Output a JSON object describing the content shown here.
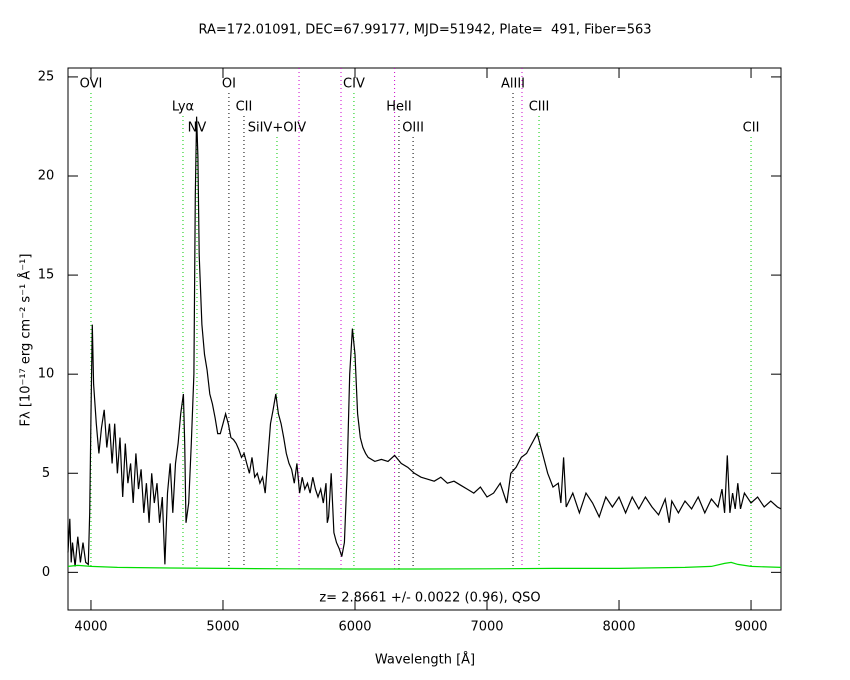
{
  "chart_data": {
    "type": "line",
    "title": "RA=172.01091, DEC=67.99177, MJD=51942, Plate=  491, Fiber=563",
    "x_label": "Wavelength [Å]",
    "y_label": "Fλ [10⁻¹⁷ erg cm⁻² s⁻¹ Å⁻¹]",
    "annotation": "z= 2.8661 +/- 0.0022 (0.96), QSO",
    "xlim": [
      3826,
      9227
    ],
    "ylim": [
      -1.9,
      25.45
    ],
    "xticks": [
      4000,
      5000,
      6000,
      7000,
      8000,
      9000
    ],
    "yticks": [
      0,
      5,
      10,
      15,
      20,
      25
    ],
    "lines": [
      {
        "label": "OVI",
        "x": 4000,
        "color": "#00cc00"
      },
      {
        "label": "Lyα",
        "x": 4697,
        "color": "#00cc00"
      },
      {
        "label": "NV",
        "x": 4803,
        "color": "#00cc00"
      },
      {
        "label": "OI",
        "x": 5045,
        "color": "#000000"
      },
      {
        "label": "CII",
        "x": 5159,
        "color": "#000000"
      },
      {
        "label": "SiIV+OIV",
        "x": 5409,
        "color": "#00cc00"
      },
      {
        "x": 5576,
        "color": "#cc00cc"
      },
      {
        "x": 5894,
        "color": "#cc00cc"
      },
      {
        "label": "CIV",
        "x": 5992,
        "color": "#00cc00"
      },
      {
        "x": 6300,
        "color": "#cc00cc"
      },
      {
        "label": "HeII",
        "x": 6333,
        "color": "#000000"
      },
      {
        "label": "OIII",
        "x": 6440,
        "color": "#000000"
      },
      {
        "label": "AlIII",
        "x": 7197,
        "color": "#000000"
      },
      {
        "x": 7265,
        "color": "#cc00cc"
      },
      {
        "label": "CIII",
        "x": 7394,
        "color": "#00cc00"
      },
      {
        "label": "CII",
        "x": 9000,
        "color": "#00cc00"
      }
    ],
    "series": [
      {
        "name": "flux",
        "color": "#000000",
        "x": [
          3826,
          3840,
          3850,
          3860,
          3880,
          3900,
          3920,
          3940,
          3960,
          3980,
          3990,
          4000,
          4010,
          4020,
          4040,
          4060,
          4080,
          4100,
          4120,
          4140,
          4160,
          4180,
          4200,
          4220,
          4240,
          4260,
          4280,
          4300,
          4320,
          4340,
          4360,
          4380,
          4400,
          4420,
          4440,
          4460,
          4480,
          4500,
          4520,
          4540,
          4560,
          4580,
          4600,
          4620,
          4640,
          4660,
          4680,
          4700,
          4710,
          4720,
          4740,
          4760,
          4780,
          4790,
          4800,
          4810,
          4820,
          4840,
          4860,
          4880,
          4900,
          4920,
          4940,
          4960,
          4980,
          5000,
          5020,
          5040,
          5060,
          5080,
          5100,
          5120,
          5140,
          5160,
          5180,
          5200,
          5220,
          5240,
          5260,
          5280,
          5300,
          5320,
          5340,
          5360,
          5380,
          5400,
          5420,
          5440,
          5460,
          5480,
          5500,
          5520,
          5540,
          5560,
          5580,
          5600,
          5620,
          5640,
          5660,
          5680,
          5700,
          5720,
          5740,
          5760,
          5780,
          5790,
          5800,
          5820,
          5840,
          5860,
          5880,
          5900,
          5920,
          5940,
          5960,
          5980,
          6000,
          6020,
          6040,
          6060,
          6080,
          6100,
          6150,
          6200,
          6250,
          6300,
          6350,
          6400,
          6450,
          6500,
          6550,
          6600,
          6650,
          6700,
          6750,
          6800,
          6850,
          6900,
          6950,
          7000,
          7050,
          7100,
          7150,
          7180,
          7220,
          7260,
          7300,
          7340,
          7380,
          7420,
          7460,
          7500,
          7540,
          7560,
          7580,
          7600,
          7650,
          7700,
          7750,
          7800,
          7850,
          7900,
          7950,
          8000,
          8050,
          8100,
          8150,
          8200,
          8250,
          8300,
          8350,
          8380,
          8400,
          8450,
          8500,
          8550,
          8600,
          8650,
          8700,
          8750,
          8780,
          8800,
          8820,
          8840,
          8860,
          8880,
          8900,
          8920,
          8950,
          9000,
          9050,
          9100,
          9150,
          9200,
          9227
        ],
        "values": [
          1.0,
          2.7,
          0.5,
          1.5,
          0.3,
          1.8,
          0.5,
          1.5,
          0.5,
          0.4,
          3.0,
          8.0,
          12.5,
          9.5,
          7.5,
          6.0,
          7.3,
          8.2,
          6.3,
          7.5,
          5.5,
          7.5,
          5.0,
          6.8,
          3.8,
          6.5,
          4.5,
          5.5,
          3.5,
          6.0,
          4.2,
          5.2,
          3.0,
          4.5,
          2.5,
          5.0,
          3.5,
          4.5,
          2.5,
          3.8,
          0.4,
          4.0,
          5.5,
          3.0,
          5.5,
          6.5,
          8.0,
          9.0,
          6.5,
          2.5,
          3.5,
          6.5,
          10.0,
          19.0,
          23.0,
          21.0,
          16.0,
          12.5,
          11.0,
          10.2,
          9.0,
          8.5,
          7.8,
          7.0,
          7.0,
          7.5,
          8.0,
          7.5,
          6.8,
          6.7,
          6.5,
          6.2,
          5.8,
          6.0,
          5.5,
          5.0,
          5.8,
          4.8,
          5.0,
          4.5,
          4.8,
          4.0,
          5.8,
          7.5,
          8.2,
          9.0,
          8.0,
          7.5,
          6.8,
          6.0,
          5.5,
          5.2,
          4.5,
          5.5,
          4.0,
          4.8,
          4.2,
          4.5,
          4.0,
          4.8,
          4.2,
          3.8,
          4.2,
          3.5,
          4.5,
          2.5,
          2.8,
          5.0,
          2.0,
          1.5,
          1.2,
          0.8,
          1.5,
          5.0,
          10.0,
          12.3,
          11.0,
          8.0,
          6.8,
          6.3,
          6.0,
          5.8,
          5.6,
          5.7,
          5.6,
          5.9,
          5.5,
          5.3,
          5.0,
          4.8,
          4.7,
          4.6,
          4.8,
          4.5,
          4.6,
          4.4,
          4.2,
          4.0,
          4.3,
          3.8,
          4.0,
          4.5,
          3.5,
          5.0,
          5.3,
          5.8,
          6.0,
          6.5,
          7.0,
          6.0,
          5.0,
          4.3,
          4.5,
          3.5,
          5.8,
          3.3,
          4.0,
          3.0,
          4.0,
          3.5,
          2.8,
          3.8,
          3.3,
          3.8,
          3.0,
          3.8,
          3.2,
          3.8,
          3.3,
          2.9,
          3.7,
          2.5,
          3.6,
          3.0,
          3.6,
          3.2,
          3.8,
          3.0,
          3.7,
          3.3,
          4.2,
          3.0,
          5.9,
          3.0,
          4.0,
          3.2,
          4.5,
          3.2,
          4.0,
          3.5,
          3.8,
          3.3,
          3.6,
          3.3,
          3.2
        ]
      },
      {
        "name": "error",
        "color": "#00dd00",
        "x": [
          3826,
          3900,
          4000,
          4200,
          4600,
          5000,
          5500,
          6000,
          6500,
          7000,
          7500,
          8000,
          8500,
          8700,
          8800,
          8850,
          8900,
          9000,
          9227
        ],
        "values": [
          0.3,
          0.35,
          0.3,
          0.25,
          0.22,
          0.2,
          0.18,
          0.17,
          0.17,
          0.18,
          0.2,
          0.2,
          0.25,
          0.3,
          0.45,
          0.5,
          0.4,
          0.3,
          0.25
        ]
      }
    ]
  }
}
